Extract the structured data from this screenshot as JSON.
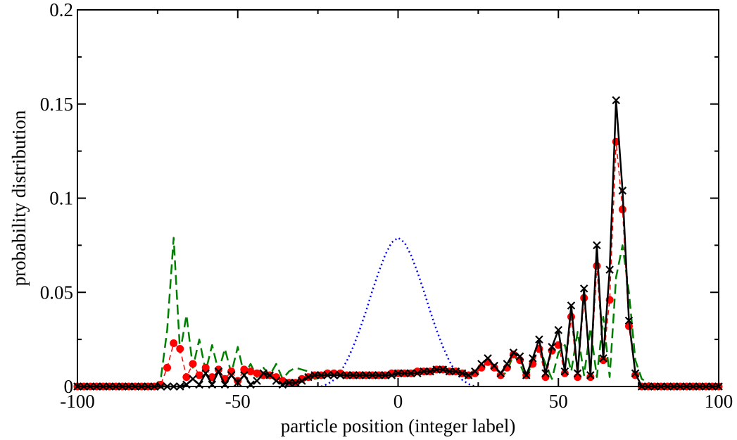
{
  "chart_data": {
    "type": "line",
    "title": "",
    "xlabel": "particle position (integer label)",
    "ylabel": "probability distribution",
    "xlim": [
      -100,
      100
    ],
    "ylim": [
      0,
      0.2
    ],
    "grid": false,
    "legend": "none",
    "x_ticks": [
      -100,
      -50,
      0,
      50,
      100
    ],
    "x_tick_labels": [
      "-100",
      "-50",
      "0",
      "50",
      "100"
    ],
    "y_ticks": [
      0,
      0.05,
      0.1,
      0.15,
      0.2
    ],
    "y_tick_labels": [
      "0",
      "0.05",
      "0.1",
      "0.15",
      "0.2"
    ],
    "series": [
      {
        "style": "dotted",
        "color": "#0000ff",
        "x": [
          -24,
          -22,
          -20,
          -18,
          -16,
          -14,
          -12,
          -10,
          -8,
          -6,
          -4,
          -2,
          0,
          2,
          4,
          6,
          8,
          10,
          12,
          14,
          16,
          18,
          20,
          22,
          24
        ],
        "y": [
          0.0,
          0.0013,
          0.0035,
          0.0075,
          0.0135,
          0.021,
          0.03,
          0.04,
          0.051,
          0.061,
          0.07,
          0.0765,
          0.079,
          0.0765,
          0.07,
          0.061,
          0.051,
          0.04,
          0.03,
          0.021,
          0.0135,
          0.0075,
          0.0035,
          0.0013,
          0.0
        ]
      },
      {
        "style": "dashed",
        "color": "#008000",
        "x": [
          -100,
          -96,
          -92,
          -88,
          -84,
          -80,
          -76,
          -74,
          -72,
          -70,
          -68,
          -66,
          -64,
          -62,
          -60,
          -58,
          -56,
          -54,
          -52,
          -50,
          -48,
          -46,
          -44,
          -42,
          -40,
          -38,
          -36,
          -34,
          -32,
          -30,
          -28,
          -26,
          -24,
          -22,
          -20,
          -18,
          -16,
          -14,
          -12,
          -10,
          -8,
          -6,
          -4,
          -2,
          0,
          2,
          4,
          6,
          8,
          10,
          12,
          14,
          16,
          18,
          20,
          22,
          24,
          26,
          28,
          30,
          32,
          34,
          36,
          38,
          40,
          42,
          44,
          46,
          48,
          50,
          52,
          54,
          56,
          58,
          60,
          62,
          64,
          66,
          68,
          70,
          72,
          74,
          76,
          80,
          84,
          88,
          92,
          96,
          100
        ],
        "y": [
          0,
          0,
          0,
          0,
          0,
          0,
          0,
          0.004,
          0.03,
          0.079,
          0.018,
          0.038,
          0.01,
          0.025,
          0.008,
          0.022,
          0.008,
          0.02,
          0.007,
          0.021,
          0.006,
          0.012,
          0.005,
          0.01,
          0.006,
          0.012,
          0.004,
          0.008,
          0.01,
          0.009,
          0.008,
          0.004,
          0.005,
          0.006,
          0.007,
          0.007,
          0.006,
          0.006,
          0.006,
          0.006,
          0.006,
          0.006,
          0.007,
          0.007,
          0.007,
          0.007,
          0.008,
          0.008,
          0.008,
          0.008,
          0.009,
          0.009,
          0.009,
          0.008,
          0.007,
          0.007,
          0.006,
          0.009,
          0.014,
          0.01,
          0.005,
          0.008,
          0.017,
          0.012,
          0.004,
          0.014,
          0.021,
          0.012,
          0.004,
          0.018,
          0.022,
          0.008,
          0.029,
          0.006,
          0.031,
          0.005,
          0.037,
          0.005,
          0.058,
          0.075,
          0.05,
          0.014,
          0.004,
          0,
          0,
          0,
          0,
          0,
          0
        ]
      },
      {
        "style": "dashed-markers",
        "color": "#ff0000",
        "marker": "circle",
        "x": [
          -100,
          -98,
          -96,
          -94,
          -92,
          -90,
          -88,
          -86,
          -84,
          -82,
          -80,
          -78,
          -76,
          -74,
          -72,
          -70,
          -68,
          -66,
          -64,
          -62,
          -60,
          -58,
          -56,
          -54,
          -52,
          -50,
          -48,
          -46,
          -44,
          -42,
          -40,
          -38,
          -36,
          -34,
          -32,
          -30,
          -28,
          -26,
          -24,
          -22,
          -20,
          -18,
          -16,
          -14,
          -12,
          -10,
          -8,
          -6,
          -4,
          -2,
          0,
          2,
          4,
          6,
          8,
          10,
          12,
          14,
          16,
          18,
          20,
          22,
          24,
          26,
          28,
          30,
          32,
          34,
          36,
          38,
          40,
          42,
          44,
          46,
          48,
          50,
          52,
          54,
          56,
          58,
          60,
          62,
          64,
          66,
          68,
          70,
          72,
          74,
          76,
          78,
          80,
          82,
          84,
          86,
          88,
          90,
          92,
          94,
          96,
          98,
          100
        ],
        "y": [
          0,
          0,
          0,
          0,
          0,
          0,
          0,
          0,
          0,
          0,
          0,
          0,
          0,
          0.001,
          0.01,
          0.023,
          0.02,
          0.005,
          0.012,
          0.006,
          0.01,
          0.005,
          0.009,
          0.004,
          0.008,
          0.003,
          0.009,
          0.008,
          0.007,
          0.006,
          0.006,
          0.005,
          0.003,
          0.002,
          0.002,
          0.004,
          0.005,
          0.006,
          0.006,
          0.007,
          0.007,
          0.007,
          0.006,
          0.006,
          0.006,
          0.006,
          0.006,
          0.006,
          0.006,
          0.007,
          0.007,
          0.007,
          0.007,
          0.008,
          0.008,
          0.008,
          0.009,
          0.009,
          0.008,
          0.008,
          0.007,
          0.006,
          0.007,
          0.01,
          0.013,
          0.01,
          0.006,
          0.01,
          0.017,
          0.014,
          0.006,
          0.012,
          0.02,
          0.005,
          0.019,
          0.022,
          0.007,
          0.037,
          0.005,
          0.047,
          0.005,
          0.064,
          0.014,
          0.046,
          0.13,
          0.094,
          0.032,
          0.006,
          0,
          0,
          0,
          0,
          0,
          0,
          0,
          0,
          0,
          0,
          0,
          0,
          0
        ]
      },
      {
        "style": "solid-markers",
        "color": "#000000",
        "marker": "x",
        "x": [
          -100,
          -98,
          -96,
          -94,
          -92,
          -90,
          -88,
          -86,
          -84,
          -82,
          -80,
          -78,
          -76,
          -74,
          -72,
          -70,
          -68,
          -66,
          -64,
          -62,
          -60,
          -58,
          -56,
          -54,
          -52,
          -50,
          -48,
          -46,
          -44,
          -42,
          -40,
          -38,
          -36,
          -34,
          -32,
          -30,
          -28,
          -26,
          -24,
          -22,
          -20,
          -18,
          -16,
          -14,
          -12,
          -10,
          -8,
          -6,
          -4,
          -2,
          0,
          2,
          4,
          6,
          8,
          10,
          12,
          14,
          16,
          18,
          20,
          22,
          24,
          26,
          28,
          30,
          32,
          34,
          36,
          38,
          40,
          42,
          44,
          46,
          48,
          50,
          52,
          54,
          56,
          58,
          60,
          62,
          64,
          66,
          68,
          70,
          72,
          74,
          76,
          78,
          80,
          82,
          84,
          86,
          88,
          90,
          92,
          94,
          96,
          98,
          100
        ],
        "y": [
          0,
          0,
          0,
          0,
          0,
          0,
          0,
          0,
          0,
          0,
          0,
          0,
          0,
          0,
          0,
          0,
          0,
          0.001,
          0.004,
          0.001,
          0.007,
          0.001,
          0.008,
          0.001,
          0.006,
          0.002,
          0.006,
          0.001,
          0.003,
          0.007,
          0.006,
          0.003,
          0.001,
          0.002,
          0.002,
          0.003,
          0.005,
          0.006,
          0.006,
          0.006,
          0.006,
          0.006,
          0.006,
          0.006,
          0.006,
          0.006,
          0.006,
          0.006,
          0.006,
          0.006,
          0.007,
          0.007,
          0.007,
          0.007,
          0.008,
          0.008,
          0.009,
          0.009,
          0.008,
          0.008,
          0.007,
          0.006,
          0.008,
          0.012,
          0.015,
          0.011,
          0.007,
          0.012,
          0.018,
          0.016,
          0.006,
          0.015,
          0.025,
          0.007,
          0.021,
          0.03,
          0.008,
          0.043,
          0.007,
          0.052,
          0.006,
          0.075,
          0.015,
          0.062,
          0.152,
          0.104,
          0.035,
          0.007,
          0,
          0,
          0,
          0,
          0,
          0,
          0,
          0,
          0,
          0,
          0,
          0,
          0
        ]
      }
    ]
  }
}
